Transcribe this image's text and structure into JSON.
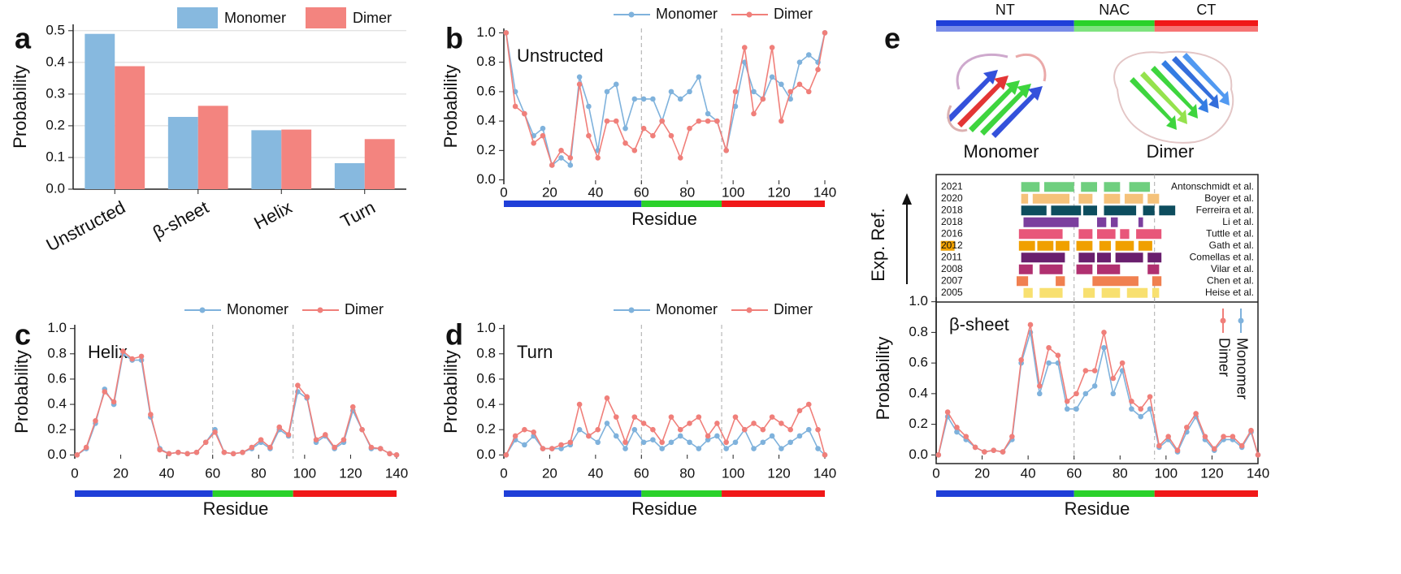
{
  "chart_data": [
    {
      "panel": "a",
      "type": "bar",
      "ylabel": "Probability",
      "categories": [
        "Unstructed",
        "β-sheet",
        "Helix",
        "Turn"
      ],
      "series": [
        {
          "name": "Monomer",
          "color": "#87b9df",
          "values": [
            0.49,
            0.228,
            0.186,
            0.082
          ]
        },
        {
          "name": "Dimer",
          "color": "#f3847f",
          "values": [
            0.388,
            0.263,
            0.188,
            0.158
          ]
        }
      ],
      "ylim": [
        0,
        0.52
      ],
      "yticks": [
        {
          "value": 0,
          "label": "0.0"
        },
        0.1,
        0.2,
        0.3,
        0.4,
        0.5
      ],
      "grid": true,
      "legend": "upper right"
    },
    {
      "panel": "b",
      "type": "line",
      "annotation": "Unstructed",
      "ylabel": "Probability",
      "xlabel": "Residue",
      "x": [
        1,
        5,
        9,
        13,
        17,
        21,
        25,
        29,
        33,
        37,
        41,
        45,
        49,
        53,
        57,
        61,
        65,
        69,
        73,
        77,
        81,
        85,
        89,
        93,
        97,
        101,
        105,
        109,
        113,
        117,
        121,
        125,
        129,
        133,
        137,
        140
      ],
      "series": [
        {
          "name": "Monomer",
          "color": "#7fb2dc",
          "values": [
            1.0,
            0.6,
            0.45,
            0.3,
            0.35,
            0.1,
            0.15,
            0.1,
            0.7,
            0.5,
            0.2,
            0.6,
            0.65,
            0.35,
            0.55,
            0.55,
            0.55,
            0.4,
            0.6,
            0.55,
            0.6,
            0.7,
            0.45,
            0.4,
            0.2,
            0.5,
            0.8,
            0.6,
            0.55,
            0.7,
            0.65,
            0.55,
            0.8,
            0.85,
            0.8,
            1.0
          ]
        },
        {
          "name": "Dimer",
          "color": "#f07f7a",
          "values": [
            1.0,
            0.5,
            0.45,
            0.25,
            0.3,
            0.1,
            0.2,
            0.15,
            0.65,
            0.3,
            0.15,
            0.4,
            0.4,
            0.25,
            0.2,
            0.35,
            0.3,
            0.4,
            0.3,
            0.15,
            0.35,
            0.4,
            0.4,
            0.4,
            0.2,
            0.6,
            0.9,
            0.45,
            0.55,
            0.9,
            0.4,
            0.6,
            0.65,
            0.6,
            0.75,
            1.0
          ]
        }
      ],
      "xlim": [
        0,
        140
      ],
      "xticks": [
        0,
        20,
        40,
        60,
        80,
        100,
        120,
        140
      ],
      "ylim": [
        -0.03,
        1.03
      ],
      "yticks": [
        {
          "value": 0,
          "label": "0.0"
        },
        0.2,
        0.4,
        0.6,
        0.8,
        {
          "value": 1,
          "label": "1.0"
        }
      ],
      "legend": "upper right"
    },
    {
      "panel": "c",
      "type": "line",
      "annotation": "Helix",
      "ylabel": "Probability",
      "xlabel": "Residue",
      "x": [
        1,
        5,
        9,
        13,
        17,
        21,
        25,
        29,
        33,
        37,
        41,
        45,
        49,
        53,
        57,
        61,
        65,
        69,
        73,
        77,
        81,
        85,
        89,
        93,
        97,
        101,
        105,
        109,
        113,
        117,
        121,
        125,
        129,
        133,
        137,
        140
      ],
      "series": [
        {
          "name": "Monomer",
          "color": "#7fb2dc",
          "values": [
            0.0,
            0.05,
            0.25,
            0.52,
            0.4,
            0.8,
            0.75,
            0.75,
            0.3,
            0.05,
            0.01,
            0.02,
            0.01,
            0.02,
            0.1,
            0.2,
            0.02,
            0.01,
            0.02,
            0.05,
            0.1,
            0.05,
            0.2,
            0.15,
            0.5,
            0.45,
            0.1,
            0.15,
            0.05,
            0.1,
            0.35,
            0.2,
            0.05,
            0.05,
            0.01,
            0.0
          ]
        },
        {
          "name": "Dimer",
          "color": "#f07f7a",
          "values": [
            0.0,
            0.06,
            0.27,
            0.5,
            0.42,
            0.82,
            0.76,
            0.78,
            0.32,
            0.04,
            0.01,
            0.02,
            0.01,
            0.02,
            0.1,
            0.18,
            0.02,
            0.01,
            0.02,
            0.06,
            0.12,
            0.06,
            0.22,
            0.16,
            0.55,
            0.46,
            0.12,
            0.16,
            0.06,
            0.12,
            0.38,
            0.2,
            0.06,
            0.05,
            0.01,
            0.0
          ]
        }
      ],
      "xlim": [
        0,
        140
      ],
      "xticks": [
        0,
        20,
        40,
        60,
        80,
        100,
        120,
        140
      ],
      "ylim": [
        -0.03,
        1.03
      ],
      "yticks": [
        {
          "value": 0,
          "label": "0.0"
        },
        0.2,
        0.4,
        0.6,
        0.8,
        {
          "value": 1,
          "label": "1.0"
        }
      ],
      "legend": "upper right"
    },
    {
      "panel": "d",
      "type": "line",
      "annotation": "Turn",
      "ylabel": "Probability",
      "xlabel": "Residue",
      "x": [
        1,
        5,
        9,
        13,
        17,
        21,
        25,
        29,
        33,
        37,
        41,
        45,
        49,
        53,
        57,
        61,
        65,
        69,
        73,
        77,
        81,
        85,
        89,
        93,
        97,
        101,
        105,
        109,
        113,
        117,
        121,
        125,
        129,
        133,
        137,
        140
      ],
      "series": [
        {
          "name": "Monomer",
          "color": "#7fb2dc",
          "values": [
            0.0,
            0.12,
            0.08,
            0.15,
            0.05,
            0.05,
            0.05,
            0.08,
            0.2,
            0.15,
            0.1,
            0.25,
            0.15,
            0.05,
            0.2,
            0.1,
            0.12,
            0.05,
            0.1,
            0.15,
            0.1,
            0.05,
            0.12,
            0.15,
            0.05,
            0.1,
            0.2,
            0.05,
            0.1,
            0.15,
            0.05,
            0.1,
            0.15,
            0.2,
            0.05,
            0.0
          ]
        },
        {
          "name": "Dimer",
          "color": "#f07f7a",
          "values": [
            0.0,
            0.15,
            0.2,
            0.18,
            0.05,
            0.05,
            0.08,
            0.1,
            0.4,
            0.15,
            0.2,
            0.45,
            0.3,
            0.1,
            0.3,
            0.25,
            0.2,
            0.1,
            0.3,
            0.2,
            0.25,
            0.3,
            0.15,
            0.25,
            0.1,
            0.3,
            0.2,
            0.25,
            0.2,
            0.3,
            0.25,
            0.2,
            0.35,
            0.4,
            0.2,
            0.0
          ]
        }
      ],
      "xlim": [
        0,
        140
      ],
      "xticks": [
        0,
        20,
        40,
        60,
        80,
        100,
        120,
        140
      ],
      "ylim": [
        -0.03,
        1.03
      ],
      "yticks": [
        {
          "value": 0,
          "label": "0.0"
        },
        0.2,
        0.4,
        0.6,
        0.8,
        {
          "value": 1,
          "label": "1.0"
        }
      ],
      "legend": "upper right"
    },
    {
      "panel": "e",
      "type": "range",
      "ylabel": "Exp. Ref.",
      "xlim": [
        0,
        140
      ],
      "rows": [
        {
          "year": "2021",
          "name": "Antonschmidt et al.",
          "color": "#6fcf7f",
          "segments": [
            [
              37,
              45
            ],
            [
              47,
              60
            ],
            [
              63,
              70
            ],
            [
              73,
              80
            ],
            [
              84,
              93
            ]
          ]
        },
        {
          "year": "2020",
          "name": "Boyer et al.",
          "color": "#f5c27a",
          "segments": [
            [
              37,
              40
            ],
            [
              42,
              58
            ],
            [
              62,
              68
            ],
            [
              73,
              80
            ],
            [
              82,
              90
            ],
            [
              92,
              97
            ]
          ]
        },
        {
          "year": "2018",
          "name": "Ferreira et al.",
          "color": "#0d4d5e",
          "segments": [
            [
              37,
              48
            ],
            [
              50,
              63
            ],
            [
              64,
              70
            ],
            [
              73,
              87
            ],
            [
              90,
              95
            ],
            [
              97,
              104
            ]
          ]
        },
        {
          "year": "2018",
          "name": "Li et al.",
          "color": "#7b3f9e",
          "segments": [
            [
              38,
              62
            ],
            [
              70,
              74
            ],
            [
              76,
              79
            ],
            [
              88,
              90
            ]
          ]
        },
        {
          "year": "2016",
          "name": "Tuttle et al.",
          "color": "#e8567a",
          "segments": [
            [
              36,
              55
            ],
            [
              62,
              68
            ],
            [
              70,
              78
            ],
            [
              80,
              84
            ],
            [
              87,
              98
            ]
          ]
        },
        {
          "year": "2012",
          "name": "Gath et al.",
          "color": "#f0a000",
          "segments": [
            [
              2,
              8
            ],
            [
              36,
              43
            ],
            [
              44,
              51
            ],
            [
              52,
              58
            ],
            [
              61,
              68
            ],
            [
              71,
              76
            ],
            [
              78,
              86
            ],
            [
              88,
              94
            ]
          ]
        },
        {
          "year": "2011",
          "name": "Comellas et al.",
          "color": "#6a1f6e",
          "segments": [
            [
              37,
              56
            ],
            [
              62,
              69
            ],
            [
              70,
              76
            ],
            [
              78,
              90
            ],
            [
              92,
              98
            ]
          ]
        },
        {
          "year": "2008",
          "name": "Vilar et al.",
          "color": "#b03070",
          "segments": [
            [
              36,
              42
            ],
            [
              45,
              55
            ],
            [
              61,
              68
            ],
            [
              70,
              80
            ],
            [
              92,
              97
            ]
          ]
        },
        {
          "year": "2007",
          "name": "Chen et al.",
          "color": "#f08050",
          "segments": [
            [
              35,
              40
            ],
            [
              52,
              56
            ],
            [
              68,
              88
            ],
            [
              94,
              98
            ]
          ]
        },
        {
          "year": "2005",
          "name": "Heise et al.",
          "color": "#f8e070",
          "segments": [
            [
              38,
              42
            ],
            [
              45,
              55
            ],
            [
              64,
              69
            ],
            [
              72,
              80
            ],
            [
              83,
              92
            ],
            [
              94,
              97
            ]
          ]
        }
      ]
    },
    {
      "type": "line",
      "annotation": "β-sheet",
      "ylabel": "Probability",
      "xlabel": "Residue",
      "x": [
        1,
        5,
        9,
        13,
        17,
        21,
        25,
        29,
        33,
        37,
        41,
        45,
        49,
        53,
        57,
        61,
        65,
        69,
        73,
        77,
        81,
        85,
        89,
        93,
        97,
        101,
        105,
        109,
        113,
        117,
        121,
        125,
        129,
        133,
        137,
        140
      ],
      "series": [
        {
          "name": "Monomer",
          "color": "#7fb2dc",
          "values": [
            0.0,
            0.25,
            0.15,
            0.1,
            0.05,
            0.02,
            0.03,
            0.02,
            0.1,
            0.6,
            0.8,
            0.4,
            0.6,
            0.6,
            0.3,
            0.3,
            0.4,
            0.45,
            0.7,
            0.4,
            0.55,
            0.3,
            0.25,
            0.3,
            0.05,
            0.1,
            0.02,
            0.15,
            0.25,
            0.1,
            0.03,
            0.1,
            0.1,
            0.05,
            0.15,
            0.0
          ]
        },
        {
          "name": "Dimer",
          "color": "#f07f7a",
          "values": [
            0.0,
            0.28,
            0.18,
            0.12,
            0.05,
            0.02,
            0.03,
            0.02,
            0.12,
            0.62,
            0.85,
            0.45,
            0.7,
            0.65,
            0.35,
            0.4,
            0.55,
            0.55,
            0.8,
            0.5,
            0.6,
            0.35,
            0.3,
            0.38,
            0.06,
            0.12,
            0.03,
            0.18,
            0.27,
            0.12,
            0.04,
            0.12,
            0.12,
            0.06,
            0.16,
            0.0
          ]
        }
      ],
      "xlim": [
        0,
        140
      ],
      "xticks": [
        0,
        20,
        40,
        60,
        80,
        100,
        120,
        140
      ],
      "ylim": [
        -0.03,
        1.03
      ],
      "yticks": [
        {
          "value": 0,
          "label": "0.0"
        },
        0.2,
        0.4,
        0.6,
        0.8,
        {
          "value": 1,
          "label": "1.0"
        }
      ],
      "legend": "right"
    }
  ],
  "domains": [
    {
      "name": "NT",
      "start": 0,
      "end": 60,
      "color": "#1f3fd8"
    },
    {
      "name": "NAC",
      "start": 60,
      "end": 95,
      "color": "#2ad12a"
    },
    {
      "name": "CT",
      "start": 95,
      "end": 140,
      "color": "#f01818"
    }
  ],
  "structures": [
    "Monomer",
    "Dimer"
  ]
}
